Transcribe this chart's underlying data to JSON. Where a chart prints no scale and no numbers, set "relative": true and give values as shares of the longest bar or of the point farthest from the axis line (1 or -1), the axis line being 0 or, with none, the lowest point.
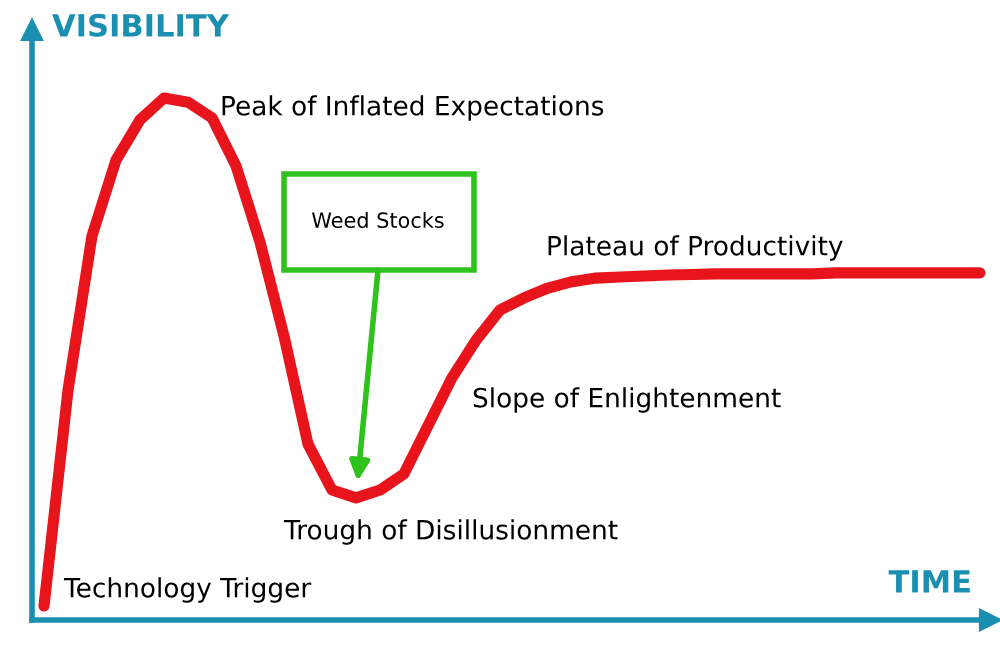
{
  "chart_data": {
    "type": "line",
    "relative": true,
    "xlabel": "TIME",
    "ylabel": "VISIBILITY",
    "categories": [
      null,
      null,
      null,
      null,
      null,
      null,
      null,
      null,
      null,
      null,
      null,
      null,
      null,
      null,
      null,
      null,
      null,
      null,
      null,
      null,
      null,
      null,
      null,
      null,
      null,
      null,
      null,
      null,
      null,
      null,
      null,
      null,
      null,
      null,
      null,
      null,
      null,
      null,
      null,
      null
    ],
    "series": [
      {
        "color": "#e8141c",
        "values": [
          0.027,
          0.44,
          0.736,
          0.881,
          0.958,
          1.0,
          0.992,
          0.962,
          0.87,
          0.724,
          0.544,
          0.337,
          0.249,
          0.234,
          0.249,
          0.28,
          0.372,
          0.464,
          0.536,
          0.594,
          0.617,
          0.636,
          0.648,
          0.655,
          0.657,
          0.659,
          0.661,
          0.662,
          0.663,
          0.663,
          0.663,
          0.663,
          0.663,
          0.665,
          0.665,
          0.665,
          0.665,
          0.665,
          0.665,
          0.665
        ]
      }
    ],
    "annotations": [
      "Peak of Inflated Expectations",
      "Weed Stocks",
      "Plateau of Productivity",
      "Slope of Enlightenment",
      "Trough of Disillusionment",
      "Technology Trigger"
    ],
    "grid": false,
    "marker": "none",
    "line_style": "solid"
  }
}
